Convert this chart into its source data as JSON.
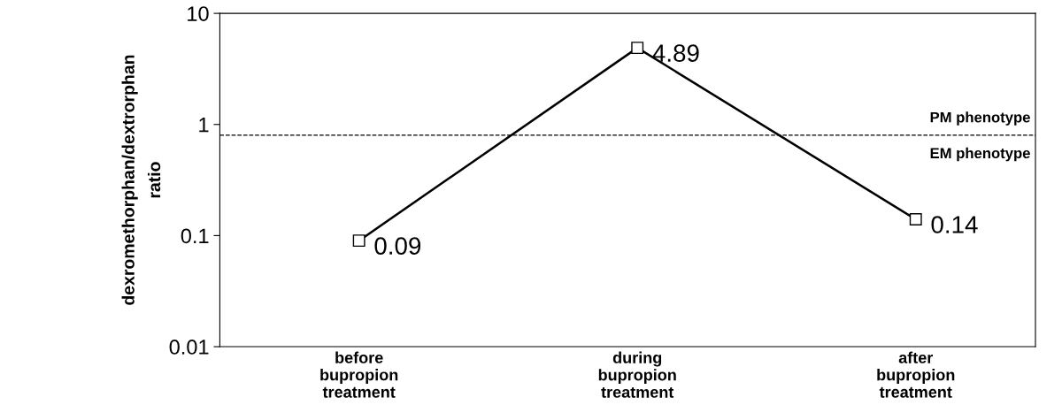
{
  "chart_data": {
    "type": "line",
    "ylabel": "dexromethorphan/dextrorphan\nratio",
    "categories": [
      "before\nbupropion\ntreatment",
      "during\nbupropion\ntreatment",
      "after\nbupropion\ntreatment"
    ],
    "series": [
      {
        "color": "#000000",
        "values": [
          0.09,
          4.89,
          0.14
        ]
      }
    ],
    "log": "y",
    "ylim": [
      0.01,
      10
    ],
    "yticks": [
      0.01,
      0.1,
      1,
      10
    ],
    "marker": "square",
    "line_style": "solid",
    "data_labels": true,
    "grid": false,
    "legend": false,
    "ref_lines": [
      {
        "axis": "y",
        "value": 0.8,
        "label": "PM phenotype",
        "line_style": "dashed",
        "color": "#000000"
      }
    ],
    "annotations": [
      "EM phenotype"
    ]
  }
}
